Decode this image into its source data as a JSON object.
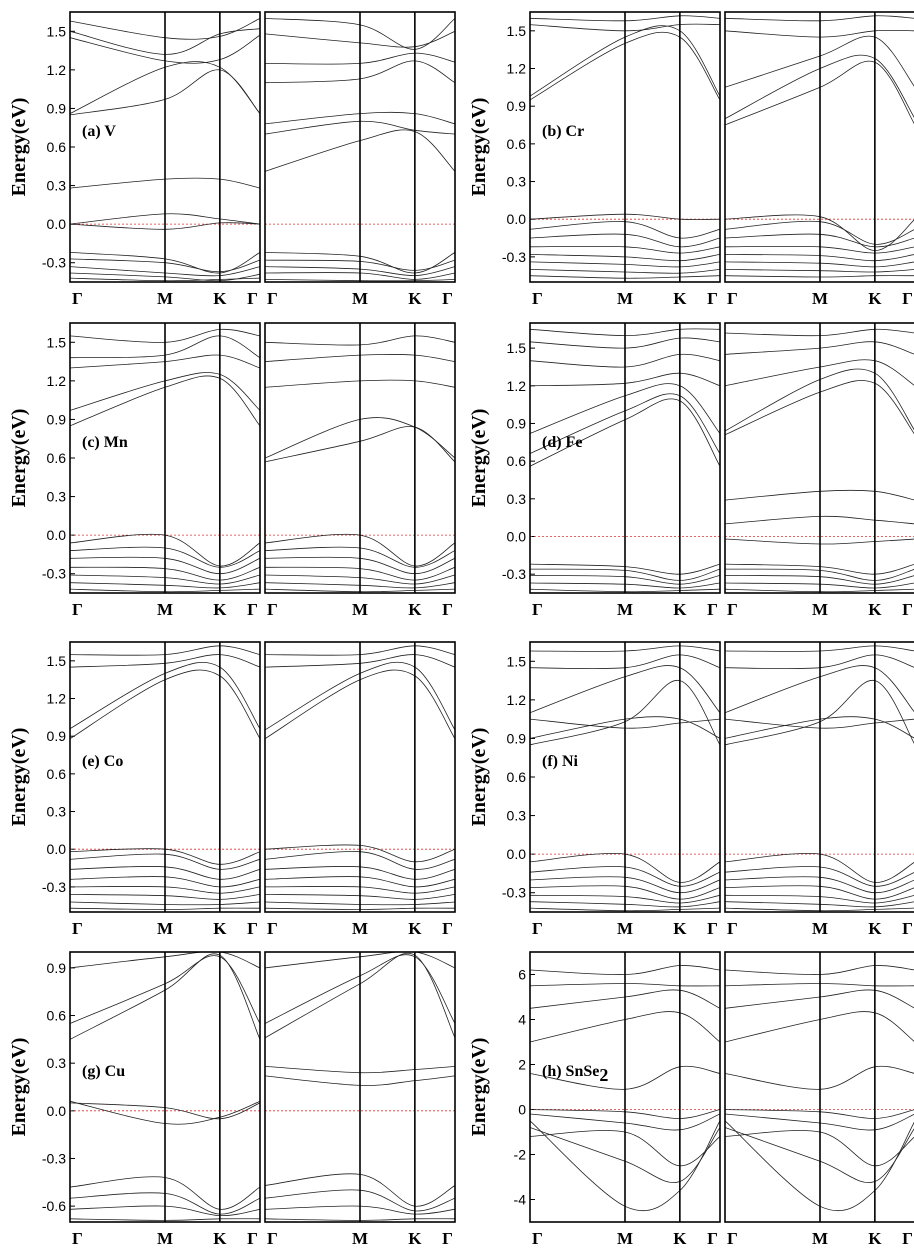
{
  "figure": {
    "kpath": [
      "Γ",
      "M",
      "K",
      "Γ"
    ],
    "kpath_positions": [
      0,
      0.5,
      0.7887,
      1
    ],
    "colors": {
      "bands": "#222222",
      "fermi_level": "#d33333",
      "frame": "#000000"
    }
  },
  "chart_data": [
    {
      "type": "line",
      "panel": "a",
      "label": "(a) V",
      "element": "V",
      "ylabel": "Energy(eV)",
      "ylim": [
        -0.45,
        1.65
      ],
      "yticks": [
        "-0.3",
        "0.0",
        "0.3",
        "0.6",
        "0.9",
        "1.2",
        "1.5"
      ],
      "xlabels": [
        "Γ",
        "M",
        "K",
        "Γ"
      ],
      "fermi_level": 0.0,
      "spin_up": [
        [
          -0.42,
          -0.44,
          -0.43,
          -0.42
        ],
        [
          -0.38,
          -0.41,
          -0.44,
          -0.39
        ],
        [
          -0.33,
          -0.38,
          -0.4,
          -0.33
        ],
        [
          -0.27,
          -0.3,
          -0.37,
          -0.28
        ],
        [
          -0.22,
          -0.27,
          -0.38,
          -0.22
        ],
        [
          0.0,
          0.08,
          0.04,
          0.0
        ],
        [
          0.0,
          -0.04,
          0.01,
          0.0
        ],
        [
          0.28,
          0.35,
          0.35,
          0.28
        ],
        [
          0.85,
          0.97,
          1.2,
          0.86
        ],
        [
          0.86,
          1.22,
          1.22,
          0.86
        ],
        [
          1.45,
          1.27,
          1.28,
          1.47
        ],
        [
          1.5,
          1.32,
          1.48,
          1.52
        ],
        [
          1.58,
          1.45,
          1.46,
          1.6
        ]
      ],
      "spin_down": [
        [
          -0.43,
          -0.44,
          -0.44,
          -0.43
        ],
        [
          -0.38,
          -0.38,
          -0.43,
          -0.38
        ],
        [
          -0.33,
          -0.35,
          -0.4,
          -0.33
        ],
        [
          -0.28,
          -0.29,
          -0.36,
          -0.28
        ],
        [
          -0.22,
          -0.25,
          -0.38,
          -0.22
        ],
        [
          0.41,
          0.65,
          0.72,
          0.41
        ],
        [
          0.7,
          0.8,
          0.73,
          0.7
        ],
        [
          0.78,
          0.86,
          0.86,
          0.78
        ],
        [
          1.1,
          1.13,
          1.27,
          1.1
        ],
        [
          1.25,
          1.25,
          1.33,
          1.26
        ],
        [
          1.48,
          1.41,
          1.38,
          1.5
        ],
        [
          1.6,
          1.55,
          1.36,
          1.6
        ]
      ]
    },
    {
      "type": "line",
      "panel": "b",
      "label": "(b) Cr",
      "element": "Cr",
      "ylabel": "Energy(eV)",
      "ylim": [
        -0.5,
        1.65
      ],
      "yticks": [
        "-0.3",
        "0.0",
        "0.3",
        "0.6",
        "0.9",
        "1.2",
        "1.5"
      ],
      "xlabels": [
        "Γ",
        "M",
        "K",
        "Γ"
      ],
      "fermi_level": 0.0,
      "spin_up": [
        [
          -0.45,
          -0.47,
          -0.46,
          -0.45
        ],
        [
          -0.4,
          -0.42,
          -0.43,
          -0.4
        ],
        [
          -0.34,
          -0.36,
          -0.38,
          -0.34
        ],
        [
          -0.28,
          -0.3,
          -0.33,
          -0.28
        ],
        [
          -0.22,
          -0.22,
          -0.27,
          -0.22
        ],
        [
          -0.15,
          -0.12,
          -0.22,
          -0.15
        ],
        [
          -0.08,
          -0.02,
          -0.15,
          -0.08
        ],
        [
          0.0,
          0.04,
          0.0,
          0.0
        ],
        [
          0.95,
          1.4,
          1.45,
          0.95
        ],
        [
          0.98,
          1.45,
          1.5,
          0.98
        ],
        [
          1.55,
          1.5,
          1.55,
          1.55
        ],
        [
          1.6,
          1.58,
          1.62,
          1.6
        ]
      ],
      "spin_down": [
        [
          -0.45,
          -0.46,
          -0.45,
          -0.45
        ],
        [
          -0.4,
          -0.41,
          -0.42,
          -0.4
        ],
        [
          -0.34,
          -0.35,
          -0.38,
          -0.34
        ],
        [
          -0.28,
          -0.29,
          -0.33,
          -0.28
        ],
        [
          -0.22,
          -0.22,
          -0.27,
          -0.22
        ],
        [
          -0.15,
          -0.12,
          -0.22,
          -0.15
        ],
        [
          -0.08,
          -0.02,
          -0.2,
          -0.08
        ],
        [
          0.0,
          0.02,
          -0.25,
          0.0
        ],
        [
          0.75,
          1.05,
          1.25,
          0.75
        ],
        [
          0.8,
          1.2,
          1.28,
          0.8
        ],
        [
          1.05,
          1.3,
          1.45,
          1.05
        ],
        [
          1.5,
          1.45,
          1.5,
          1.5
        ],
        [
          1.6,
          1.58,
          1.62,
          1.6
        ]
      ]
    },
    {
      "type": "line",
      "panel": "c",
      "label": "(c) Mn",
      "element": "Mn",
      "ylabel": "Energy(eV)",
      "ylim": [
        -0.45,
        1.65
      ],
      "yticks": [
        "-0.3",
        "0.0",
        "0.3",
        "0.6",
        "0.9",
        "1.2",
        "1.5"
      ],
      "xlabels": [
        "Γ",
        "M",
        "K",
        "Γ"
      ],
      "fermi_level": 0.0,
      "spin_up": [
        [
          -0.42,
          -0.44,
          -0.43,
          -0.42
        ],
        [
          -0.37,
          -0.39,
          -0.41,
          -0.37
        ],
        [
          -0.31,
          -0.33,
          -0.38,
          -0.31
        ],
        [
          -0.25,
          -0.26,
          -0.35,
          -0.25
        ],
        [
          -0.18,
          -0.18,
          -0.3,
          -0.18
        ],
        [
          -0.12,
          -0.1,
          -0.25,
          -0.12
        ],
        [
          -0.06,
          0.0,
          -0.24,
          -0.06
        ],
        [
          0.85,
          1.15,
          1.22,
          0.85
        ],
        [
          0.97,
          1.2,
          1.25,
          0.97
        ],
        [
          1.3,
          1.35,
          1.4,
          1.3
        ],
        [
          1.38,
          1.4,
          1.55,
          1.38
        ],
        [
          1.55,
          1.5,
          1.6,
          1.55
        ]
      ],
      "spin_down": [
        [
          -0.42,
          -0.44,
          -0.43,
          -0.42
        ],
        [
          -0.37,
          -0.39,
          -0.41,
          -0.37
        ],
        [
          -0.31,
          -0.33,
          -0.38,
          -0.31
        ],
        [
          -0.25,
          -0.26,
          -0.35,
          -0.25
        ],
        [
          -0.18,
          -0.18,
          -0.3,
          -0.18
        ],
        [
          -0.12,
          -0.1,
          -0.25,
          -0.12
        ],
        [
          -0.06,
          0.0,
          -0.24,
          -0.06
        ],
        [
          0.57,
          0.73,
          0.84,
          0.57
        ],
        [
          0.6,
          0.9,
          0.84,
          0.6
        ],
        [
          1.15,
          1.2,
          1.2,
          1.15
        ],
        [
          1.35,
          1.4,
          1.4,
          1.35
        ],
        [
          1.5,
          1.48,
          1.55,
          1.5
        ]
      ]
    },
    {
      "type": "line",
      "panel": "d",
      "label": "(d) Fe",
      "element": "Fe",
      "ylabel": "Energy(eV)",
      "ylim": [
        -0.45,
        1.7
      ],
      "yticks": [
        "-0.3",
        "0.0",
        "0.3",
        "0.6",
        "0.9",
        "1.2",
        "1.5"
      ],
      "xlabels": [
        "Γ",
        "M",
        "K",
        "Γ"
      ],
      "fermi_level": 0.0,
      "spin_up": [
        [
          -0.42,
          -0.44,
          -0.43,
          -0.42
        ],
        [
          -0.37,
          -0.38,
          -0.41,
          -0.37
        ],
        [
          -0.31,
          -0.32,
          -0.38,
          -0.31
        ],
        [
          -0.26,
          -0.27,
          -0.35,
          -0.26
        ],
        [
          -0.22,
          -0.24,
          -0.3,
          -0.22
        ],
        [
          0.56,
          0.93,
          1.08,
          0.56
        ],
        [
          0.66,
          1.0,
          1.12,
          0.66
        ],
        [
          0.82,
          1.12,
          1.2,
          0.82
        ],
        [
          1.2,
          1.22,
          1.3,
          1.2
        ],
        [
          1.4,
          1.35,
          1.45,
          1.4
        ],
        [
          1.55,
          1.5,
          1.58,
          1.55
        ],
        [
          1.65,
          1.6,
          1.65,
          1.65
        ]
      ],
      "spin_down": [
        [
          -0.42,
          -0.44,
          -0.43,
          -0.42
        ],
        [
          -0.37,
          -0.38,
          -0.41,
          -0.37
        ],
        [
          -0.31,
          -0.32,
          -0.38,
          -0.31
        ],
        [
          -0.26,
          -0.27,
          -0.35,
          -0.26
        ],
        [
          -0.22,
          -0.24,
          -0.3,
          -0.22
        ],
        [
          -0.02,
          -0.06,
          -0.04,
          -0.02
        ],
        [
          0.1,
          0.16,
          0.13,
          0.1
        ],
        [
          0.29,
          0.36,
          0.36,
          0.29
        ],
        [
          0.81,
          1.15,
          1.22,
          0.81
        ],
        [
          0.84,
          1.25,
          1.3,
          0.84
        ],
        [
          1.2,
          1.35,
          1.4,
          1.2
        ],
        [
          1.45,
          1.5,
          1.55,
          1.45
        ],
        [
          1.62,
          1.6,
          1.65,
          1.62
        ]
      ]
    },
    {
      "type": "line",
      "panel": "e",
      "label": "(e) Co",
      "element": "Co",
      "ylabel": "Energy(eV)",
      "ylim": [
        -0.5,
        1.65
      ],
      "yticks": [
        "-0.3",
        "0.0",
        "0.3",
        "0.6",
        "0.9",
        "1.2",
        "1.5"
      ],
      "xlabels": [
        "Γ",
        "M",
        "K",
        "Γ"
      ],
      "fermi_level": 0.0,
      "spin_up": [
        [
          -0.47,
          -0.48,
          -0.47,
          -0.47
        ],
        [
          -0.42,
          -0.44,
          -0.44,
          -0.42
        ],
        [
          -0.36,
          -0.37,
          -0.4,
          -0.36
        ],
        [
          -0.3,
          -0.3,
          -0.35,
          -0.3
        ],
        [
          -0.24,
          -0.22,
          -0.3,
          -0.24
        ],
        [
          -0.16,
          -0.14,
          -0.24,
          -0.16
        ],
        [
          -0.08,
          -0.04,
          -0.16,
          -0.08
        ],
        [
          -0.02,
          0.0,
          -0.12,
          -0.02
        ],
        [
          0.88,
          1.35,
          1.38,
          0.88
        ],
        [
          0.96,
          1.4,
          1.45,
          0.96
        ],
        [
          1.45,
          1.48,
          1.55,
          1.45
        ],
        [
          1.55,
          1.55,
          1.62,
          1.55
        ]
      ],
      "spin_down": [
        [
          -0.47,
          -0.48,
          -0.47,
          -0.47
        ],
        [
          -0.42,
          -0.44,
          -0.44,
          -0.42
        ],
        [
          -0.36,
          -0.37,
          -0.4,
          -0.36
        ],
        [
          -0.3,
          -0.3,
          -0.35,
          -0.3
        ],
        [
          -0.24,
          -0.22,
          -0.3,
          -0.24
        ],
        [
          -0.16,
          -0.14,
          -0.24,
          -0.16
        ],
        [
          -0.08,
          -0.02,
          -0.16,
          -0.08
        ],
        [
          0.0,
          0.03,
          -0.1,
          0.0
        ],
        [
          0.88,
          1.35,
          1.38,
          0.88
        ],
        [
          0.95,
          1.4,
          1.45,
          0.95
        ],
        [
          1.45,
          1.48,
          1.55,
          1.45
        ],
        [
          1.55,
          1.55,
          1.62,
          1.55
        ]
      ]
    },
    {
      "type": "line",
      "panel": "f",
      "label": "(f) Ni",
      "element": "Ni",
      "ylabel": "Energy(eV)",
      "ylim": [
        -0.45,
        1.65
      ],
      "yticks": [
        "-0.3",
        "0.0",
        "0.3",
        "0.6",
        "0.9",
        "1.2",
        "1.5"
      ],
      "xlabels": [
        "Γ",
        "M",
        "K",
        "Γ"
      ],
      "fermi_level": 0.0,
      "spin_up": [
        [
          -0.42,
          -0.44,
          -0.43,
          -0.42
        ],
        [
          -0.37,
          -0.39,
          -0.41,
          -0.37
        ],
        [
          -0.32,
          -0.33,
          -0.38,
          -0.32
        ],
        [
          -0.26,
          -0.25,
          -0.35,
          -0.26
        ],
        [
          -0.2,
          -0.18,
          -0.3,
          -0.2
        ],
        [
          -0.14,
          -0.1,
          -0.25,
          -0.14
        ],
        [
          -0.06,
          0.0,
          -0.22,
          -0.06
        ],
        [
          0.85,
          1.03,
          1.35,
          0.85
        ],
        [
          0.9,
          1.05,
          1.05,
          0.9
        ],
        [
          1.05,
          0.98,
          1.02,
          1.05
        ],
        [
          1.1,
          1.38,
          1.45,
          1.1
        ],
        [
          1.45,
          1.45,
          1.55,
          1.45
        ],
        [
          1.58,
          1.58,
          1.62,
          1.58
        ]
      ],
      "spin_down": [
        [
          -0.42,
          -0.44,
          -0.43,
          -0.42
        ],
        [
          -0.37,
          -0.39,
          -0.41,
          -0.37
        ],
        [
          -0.32,
          -0.33,
          -0.38,
          -0.32
        ],
        [
          -0.26,
          -0.25,
          -0.35,
          -0.26
        ],
        [
          -0.2,
          -0.18,
          -0.3,
          -0.2
        ],
        [
          -0.14,
          -0.1,
          -0.25,
          -0.14
        ],
        [
          -0.06,
          0.0,
          -0.22,
          -0.06
        ],
        [
          0.85,
          1.03,
          1.35,
          0.85
        ],
        [
          0.9,
          1.05,
          1.05,
          0.9
        ],
        [
          1.05,
          0.98,
          1.02,
          1.05
        ],
        [
          1.1,
          1.38,
          1.45,
          1.1
        ],
        [
          1.45,
          1.45,
          1.55,
          1.45
        ],
        [
          1.58,
          1.58,
          1.62,
          1.58
        ]
      ]
    },
    {
      "type": "line",
      "panel": "g",
      "label": "(g) Cu",
      "element": "Cu",
      "ylabel": "Energy(eV)",
      "ylim": [
        -0.7,
        1.0
      ],
      "yticks": [
        "-0.6",
        "-0.3",
        "0.0",
        "0.3",
        "0.6",
        "0.9"
      ],
      "xlabels": [
        "Γ",
        "M",
        "K",
        "Γ"
      ],
      "fermi_level": 0.0,
      "spin_up": [
        [
          -0.68,
          -0.69,
          -0.68,
          -0.68
        ],
        [
          -0.62,
          -0.6,
          -0.66,
          -0.62
        ],
        [
          -0.55,
          -0.52,
          -0.65,
          -0.55
        ],
        [
          -0.48,
          -0.42,
          -0.62,
          -0.48
        ],
        [
          0.06,
          -0.08,
          -0.04,
          0.06
        ],
        [
          0.05,
          0.02,
          -0.05,
          0.05
        ],
        [
          0.45,
          0.76,
          0.98,
          0.45
        ],
        [
          0.55,
          0.8,
          0.97,
          0.55
        ],
        [
          0.9,
          0.97,
          1.0,
          0.9
        ]
      ],
      "spin_down": [
        [
          -0.68,
          -0.69,
          -0.68,
          -0.68
        ],
        [
          -0.62,
          -0.6,
          -0.65,
          -0.62
        ],
        [
          -0.55,
          -0.5,
          -0.63,
          -0.55
        ],
        [
          -0.47,
          -0.4,
          -0.6,
          -0.47
        ],
        [
          0.22,
          0.16,
          0.19,
          0.22
        ],
        [
          0.28,
          0.24,
          0.26,
          0.28
        ],
        [
          0.46,
          0.8,
          0.98,
          0.46
        ],
        [
          0.55,
          0.85,
          0.97,
          0.55
        ],
        [
          0.9,
          0.97,
          1.0,
          0.9
        ]
      ]
    },
    {
      "type": "line",
      "panel": "h",
      "label": "(h) SnSe",
      "label_subscript": "2",
      "element": "SnSe2",
      "ylabel": "Energy(eV)",
      "ylim": [
        -5,
        7
      ],
      "yticks": [
        "-4",
        "-2",
        "0",
        "2",
        "4",
        "6"
      ],
      "xlabels": [
        "Γ",
        "M",
        "K",
        "Γ"
      ],
      "fermi_level": 0.0,
      "spin_up": [
        [
          -0.5,
          -4.3,
          -3.6,
          -0.5
        ],
        [
          -0.8,
          -2.3,
          -3.2,
          -0.8
        ],
        [
          -1.2,
          -1.0,
          -2.5,
          -1.2
        ],
        [
          -0.2,
          -0.6,
          -0.9,
          -0.2
        ],
        [
          0.0,
          -0.1,
          -0.4,
          0.0
        ],
        [
          1.6,
          0.9,
          1.9,
          1.6
        ],
        [
          3.0,
          4.0,
          4.3,
          3.0
        ],
        [
          4.5,
          5.0,
          5.3,
          4.5
        ],
        [
          5.5,
          5.6,
          5.5,
          5.5
        ],
        [
          6.2,
          6.0,
          6.4,
          6.2
        ]
      ],
      "spin_down": [
        [
          -0.5,
          -4.3,
          -3.6,
          -0.5
        ],
        [
          -0.8,
          -2.3,
          -3.2,
          -0.8
        ],
        [
          -1.2,
          -1.0,
          -2.5,
          -1.2
        ],
        [
          -0.2,
          -0.6,
          -0.9,
          -0.2
        ],
        [
          0.0,
          -0.1,
          -0.4,
          0.0
        ],
        [
          1.6,
          0.9,
          1.9,
          1.6
        ],
        [
          3.0,
          4.0,
          4.3,
          3.0
        ],
        [
          4.5,
          5.0,
          5.3,
          4.5
        ],
        [
          5.5,
          5.6,
          5.5,
          5.5
        ],
        [
          6.2,
          6.0,
          6.4,
          6.2
        ]
      ]
    }
  ]
}
